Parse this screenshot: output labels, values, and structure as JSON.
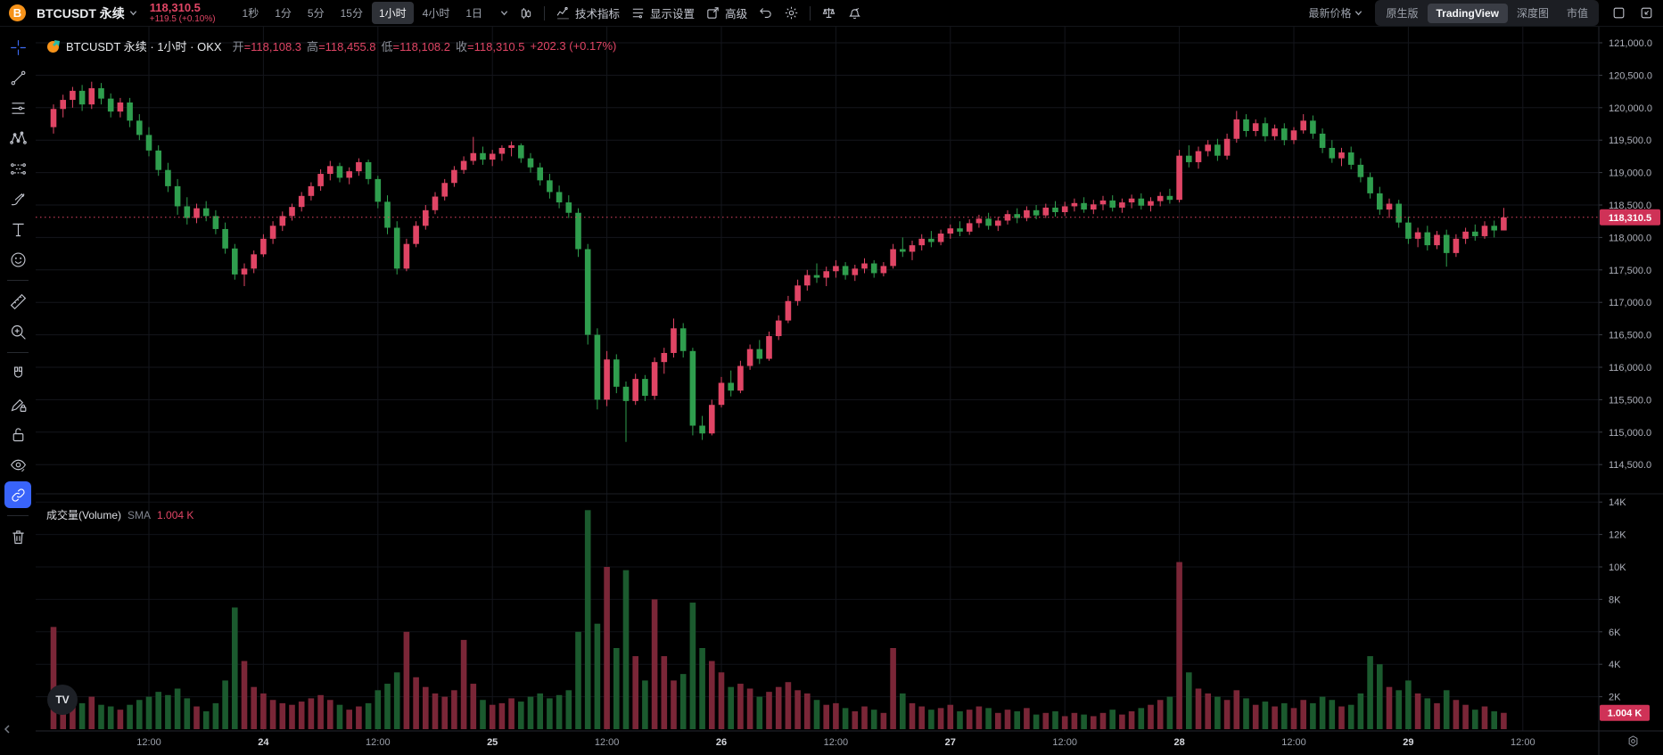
{
  "topbar": {
    "symbol": "BTCUSDT 永续",
    "price": "118,310.5",
    "change": "+119.5 (+0.10%)",
    "timeframes": [
      "1秒",
      "1分",
      "5分",
      "15分",
      "1小时",
      "4小时",
      "1日"
    ],
    "active_timeframe": "1小时",
    "indicators_label": "技术指标",
    "display_settings_label": "显示设置",
    "advanced_label": "高级",
    "latest_price_label": "最新价格",
    "view_tabs": [
      "原生版",
      "TradingView",
      "深度图",
      "市值"
    ],
    "active_view_tab": "TradingView"
  },
  "legend": {
    "title": "BTCUSDT 永续 · 1小时 · OKX",
    "pairs": [
      {
        "label": "开",
        "value": "=118,108.3"
      },
      {
        "label": "高",
        "value": "=118,455.8"
      },
      {
        "label": "低",
        "value": "=118,108.2"
      },
      {
        "label": "收",
        "value": "=118,310.5"
      }
    ],
    "change": "+202.3 (+0.17%)"
  },
  "volume_legend": {
    "title": "成交量(Volume)",
    "ma_label": "SMA",
    "ma_value": "1.004 K"
  },
  "price_axis": {
    "ticks": [
      "121,000.0",
      "120,500.0",
      "120,000.0",
      "119,500.0",
      "119,000.0",
      "118,500.0",
      "118,000.0",
      "117,500.0",
      "117,000.0",
      "116,500.0",
      "116,000.0",
      "115,500.0",
      "115,000.0",
      "114,500.0"
    ],
    "last_price_label": "118,310.5"
  },
  "volume_axis": {
    "ticks": [
      "14K",
      "12K",
      "10K",
      "8K",
      "6K",
      "4K",
      "2K"
    ],
    "last_volume_label": "1.004 K"
  },
  "time_axis": {
    "labels": [
      {
        "text": "12:00",
        "major": false
      },
      {
        "text": "24",
        "major": true
      },
      {
        "text": "12:00",
        "major": false
      },
      {
        "text": "25",
        "major": true
      },
      {
        "text": "12:00",
        "major": false
      },
      {
        "text": "26",
        "major": true
      },
      {
        "text": "12:00",
        "major": false
      },
      {
        "text": "27",
        "major": true
      },
      {
        "text": "12:00",
        "major": false
      },
      {
        "text": "28",
        "major": true
      },
      {
        "text": "12:00",
        "major": false
      },
      {
        "text": "29",
        "major": true
      },
      {
        "text": "12:00",
        "major": false
      }
    ]
  },
  "colors": {
    "up": "#e04565",
    "down": "#2f9e4e",
    "up_dim": "#7a2637",
    "down_dim": "#1b5a2e",
    "badge": "#cf3257",
    "accent_blue": "#3964fa",
    "grid": "#14161c",
    "axis_text": "#adb0ba",
    "axis_line": "#23262e"
  },
  "watermark_logo": "TV",
  "sidebar": {
    "tools": [
      "crosshair",
      "trend-line",
      "fib-retracement",
      "xabcd-pattern",
      "long-position",
      "brush",
      "text",
      "emoji",
      "ruler",
      "zoom-in",
      "magnet",
      "drawing-lock",
      "lock-all",
      "hide-drawings",
      "sync-drawings",
      "trash"
    ],
    "active_tool": "sync-drawings"
  },
  "chart_data": {
    "type": "candlestick+volume",
    "symbol": "BTCUSDT",
    "interval": "1h",
    "exchange": "OKX",
    "last_price": 118310.5,
    "last_volume_k": 1.004,
    "price_axis_range": [
      114500,
      121000
    ],
    "price_tick_step": 500,
    "volume_axis_max_k": 14,
    "bars": [
      [
        119700,
        120050,
        119600,
        119980,
        6.3
      ],
      [
        119980,
        120200,
        119850,
        120120,
        2.2
      ],
      [
        120120,
        120320,
        120000,
        120260,
        1.8
      ],
      [
        120260,
        120350,
        119950,
        120050,
        1.6
      ],
      [
        120050,
        120400,
        119980,
        120300,
        2.0
      ],
      [
        120300,
        120380,
        120050,
        120140,
        1.5
      ],
      [
        120140,
        120220,
        119850,
        119940,
        1.4
      ],
      [
        119940,
        120150,
        119850,
        120080,
        1.2
      ],
      [
        120080,
        120150,
        119700,
        119800,
        1.5
      ],
      [
        119800,
        119900,
        119500,
        119580,
        1.8
      ],
      [
        119580,
        119700,
        119250,
        119340,
        2.0
      ],
      [
        119340,
        119420,
        118950,
        119040,
        2.3
      ],
      [
        119040,
        119150,
        118700,
        118790,
        2.1
      ],
      [
        118790,
        118900,
        118350,
        118480,
        2.5
      ],
      [
        118480,
        118620,
        118200,
        118300,
        1.9
      ],
      [
        118300,
        118520,
        118220,
        118450,
        1.4
      ],
      [
        118450,
        118560,
        118250,
        118330,
        1.1
      ],
      [
        118330,
        118420,
        118050,
        118130,
        1.6
      ],
      [
        118130,
        118230,
        117750,
        117830,
        3.0
      ],
      [
        117830,
        117900,
        117350,
        117430,
        7.5
      ],
      [
        117430,
        117600,
        117250,
        117520,
        4.2
      ],
      [
        117520,
        117800,
        117450,
        117740,
        2.6
      ],
      [
        117740,
        118050,
        117700,
        117980,
        2.2
      ],
      [
        117980,
        118250,
        117900,
        118180,
        1.8
      ],
      [
        118180,
        118400,
        118100,
        118330,
        1.6
      ],
      [
        118330,
        118520,
        118260,
        118470,
        1.5
      ],
      [
        118470,
        118700,
        118400,
        118640,
        1.7
      ],
      [
        118640,
        118850,
        118570,
        118790,
        1.9
      ],
      [
        118790,
        119050,
        118720,
        118980,
        2.1
      ],
      [
        118980,
        119180,
        118880,
        119100,
        1.8
      ],
      [
        119100,
        119150,
        118850,
        118920,
        1.5
      ],
      [
        118920,
        119080,
        118820,
        119020,
        1.2
      ],
      [
        119020,
        119220,
        118950,
        119160,
        1.4
      ],
      [
        119160,
        119200,
        118820,
        118900,
        1.6
      ],
      [
        118900,
        118950,
        118450,
        118550,
        2.4
      ],
      [
        118550,
        118650,
        118050,
        118150,
        2.8
      ],
      [
        118150,
        118250,
        117430,
        117520,
        3.5
      ],
      [
        117520,
        117980,
        117480,
        117900,
        6.0
      ],
      [
        117900,
        118250,
        117850,
        118180,
        3.2
      ],
      [
        118180,
        118500,
        118120,
        118420,
        2.6
      ],
      [
        118420,
        118700,
        118360,
        118630,
        2.2
      ],
      [
        118630,
        118900,
        118570,
        118840,
        2.0
      ],
      [
        118840,
        119100,
        118780,
        119040,
        2.4
      ],
      [
        119040,
        119250,
        118980,
        119180,
        5.5
      ],
      [
        119180,
        119550,
        119120,
        119300,
        2.8
      ],
      [
        119300,
        119400,
        119120,
        119200,
        1.8
      ],
      [
        119200,
        119350,
        119100,
        119290,
        1.5
      ],
      [
        119290,
        119420,
        119180,
        119380,
        1.6
      ],
      [
        119380,
        119480,
        119250,
        119420,
        1.9
      ],
      [
        119420,
        119450,
        119150,
        119220,
        1.7
      ],
      [
        119220,
        119300,
        119000,
        119080,
        2.0
      ],
      [
        119080,
        119150,
        118800,
        118880,
        2.2
      ],
      [
        118880,
        118980,
        118600,
        118700,
        1.9
      ],
      [
        118700,
        118800,
        118450,
        118540,
        2.1
      ],
      [
        118540,
        118650,
        118300,
        118380,
        2.4
      ],
      [
        118380,
        118450,
        117700,
        117820,
        6.0
      ],
      [
        117820,
        117900,
        116350,
        116500,
        13.5
      ],
      [
        116500,
        116600,
        115350,
        115500,
        6.5
      ],
      [
        115500,
        116250,
        115400,
        116120,
        10.0
      ],
      [
        116120,
        116200,
        115600,
        115700,
        5.0
      ],
      [
        115700,
        115780,
        114850,
        115480,
        9.8
      ],
      [
        115480,
        115900,
        115420,
        115820,
        4.5
      ],
      [
        115820,
        115880,
        115480,
        115560,
        3.0
      ],
      [
        115560,
        116150,
        115500,
        116080,
        8.0
      ],
      [
        116080,
        116300,
        115900,
        116220,
        4.5
      ],
      [
        116220,
        116750,
        116150,
        116600,
        3.0
      ],
      [
        116600,
        116680,
        116150,
        116250,
        3.4
      ],
      [
        116250,
        116300,
        114950,
        115100,
        7.8
      ],
      [
        115100,
        115250,
        114880,
        114980,
        5.0
      ],
      [
        114980,
        115500,
        114950,
        115420,
        4.2
      ],
      [
        115420,
        115850,
        115380,
        115760,
        3.5
      ],
      [
        115760,
        115950,
        115550,
        115640,
        2.6
      ],
      [
        115640,
        116100,
        115600,
        116020,
        2.8
      ],
      [
        116020,
        116350,
        115960,
        116280,
        2.5
      ],
      [
        116280,
        116420,
        116050,
        116130,
        2.0
      ],
      [
        116130,
        116550,
        116100,
        116480,
        2.3
      ],
      [
        116480,
        116800,
        116420,
        116720,
        2.6
      ],
      [
        116720,
        117100,
        116680,
        117020,
        2.9
      ],
      [
        117020,
        117350,
        116950,
        117260,
        2.4
      ],
      [
        117260,
        117500,
        117180,
        117420,
        2.2
      ],
      [
        117420,
        117600,
        117300,
        117380,
        1.8
      ],
      [
        117380,
        117550,
        117250,
        117480,
        1.5
      ],
      [
        117480,
        117650,
        117380,
        117560,
        1.6
      ],
      [
        117560,
        117620,
        117350,
        117420,
        1.3
      ],
      [
        117420,
        117580,
        117330,
        117520,
        1.1
      ],
      [
        117520,
        117680,
        117450,
        117600,
        1.4
      ],
      [
        117600,
        117650,
        117380,
        117450,
        1.2
      ],
      [
        117450,
        117620,
        117400,
        117560,
        1.0
      ],
      [
        117560,
        117900,
        117520,
        117820,
        5.0
      ],
      [
        117820,
        118000,
        117700,
        117780,
        2.2
      ],
      [
        117780,
        117950,
        117650,
        117880,
        1.6
      ],
      [
        117880,
        118050,
        117800,
        117980,
        1.4
      ],
      [
        117980,
        118100,
        117850,
        117930,
        1.2
      ],
      [
        117930,
        118120,
        117880,
        118060,
        1.3
      ],
      [
        118060,
        118200,
        117980,
        118140,
        1.5
      ],
      [
        118140,
        118250,
        118020,
        118090,
        1.1
      ],
      [
        118090,
        118280,
        118040,
        118220,
        1.2
      ],
      [
        118220,
        118350,
        118150,
        118290,
        1.4
      ],
      [
        118290,
        118380,
        118120,
        118180,
        1.3
      ],
      [
        118180,
        118320,
        118100,
        118260,
        1.0
      ],
      [
        118260,
        118420,
        118200,
        118360,
        1.2
      ],
      [
        118360,
        118450,
        118220,
        118300,
        1.1
      ],
      [
        118300,
        118480,
        118250,
        118420,
        1.3
      ],
      [
        118420,
        118500,
        118280,
        118340,
        0.9
      ],
      [
        118340,
        118520,
        118300,
        118460,
        1.0
      ],
      [
        118460,
        118560,
        118320,
        118390,
        1.1
      ],
      [
        118390,
        118550,
        118330,
        118480,
        0.8
      ],
      [
        118480,
        118600,
        118400,
        118530,
        1.0
      ],
      [
        118530,
        118620,
        118380,
        118430,
        0.9
      ],
      [
        118430,
        118580,
        118360,
        118510,
        0.8
      ],
      [
        118510,
        118640,
        118420,
        118570,
        1.0
      ],
      [
        118570,
        118650,
        118400,
        118460,
        1.2
      ],
      [
        118460,
        118600,
        118380,
        118540,
        0.9
      ],
      [
        118540,
        118660,
        118450,
        118600,
        1.1
      ],
      [
        118600,
        118680,
        118430,
        118490,
        1.3
      ],
      [
        118490,
        118620,
        118400,
        118560,
        1.5
      ],
      [
        118560,
        118700,
        118480,
        118640,
        1.8
      ],
      [
        118640,
        118750,
        118520,
        118580,
        2.0
      ],
      [
        118580,
        119350,
        118540,
        119260,
        10.3
      ],
      [
        119260,
        119420,
        119080,
        119160,
        3.5
      ],
      [
        119160,
        119400,
        119060,
        119330,
        2.5
      ],
      [
        119330,
        119500,
        119250,
        119430,
        2.2
      ],
      [
        119430,
        119520,
        119180,
        119260,
        2.0
      ],
      [
        119260,
        119600,
        119200,
        119520,
        1.8
      ],
      [
        119520,
        119950,
        119460,
        119820,
        2.4
      ],
      [
        119820,
        119900,
        119550,
        119640,
        1.9
      ],
      [
        119640,
        119820,
        119560,
        119760,
        1.5
      ],
      [
        119760,
        119850,
        119480,
        119560,
        1.7
      ],
      [
        119560,
        119740,
        119500,
        119680,
        1.4
      ],
      [
        119680,
        119760,
        119420,
        119500,
        1.6
      ],
      [
        119500,
        119700,
        119440,
        119650,
        1.3
      ],
      [
        119650,
        119900,
        119600,
        119800,
        1.8
      ],
      [
        119800,
        119880,
        119520,
        119600,
        1.6
      ],
      [
        119600,
        119680,
        119300,
        119380,
        2.0
      ],
      [
        119380,
        119500,
        119150,
        119220,
        1.8
      ],
      [
        119220,
        119380,
        119100,
        119310,
        1.4
      ],
      [
        119310,
        119400,
        119050,
        119120,
        1.5
      ],
      [
        119120,
        119220,
        118850,
        118930,
        2.2
      ],
      [
        118930,
        119000,
        118600,
        118680,
        4.5
      ],
      [
        118680,
        118780,
        118350,
        118430,
        4.0
      ],
      [
        118430,
        118600,
        118300,
        118520,
        2.6
      ],
      [
        118520,
        118580,
        118150,
        118230,
        2.4
      ],
      [
        118230,
        118320,
        117900,
        117980,
        3.0
      ],
      [
        117980,
        118150,
        117850,
        118080,
        2.2
      ],
      [
        118080,
        118180,
        117800,
        117880,
        1.9
      ],
      [
        117880,
        118100,
        117820,
        118040,
        1.6
      ],
      [
        118040,
        118120,
        117550,
        117760,
        2.4
      ],
      [
        117760,
        118050,
        117700,
        117980,
        1.8
      ],
      [
        117980,
        118150,
        117900,
        118090,
        1.5
      ],
      [
        118090,
        118200,
        117950,
        118020,
        1.2
      ],
      [
        118020,
        118250,
        117980,
        118180,
        1.4
      ],
      [
        118180,
        118260,
        118000,
        118108.3,
        1.1
      ],
      [
        118108.3,
        118455.8,
        118108.2,
        118310.5,
        1.004
      ]
    ]
  }
}
